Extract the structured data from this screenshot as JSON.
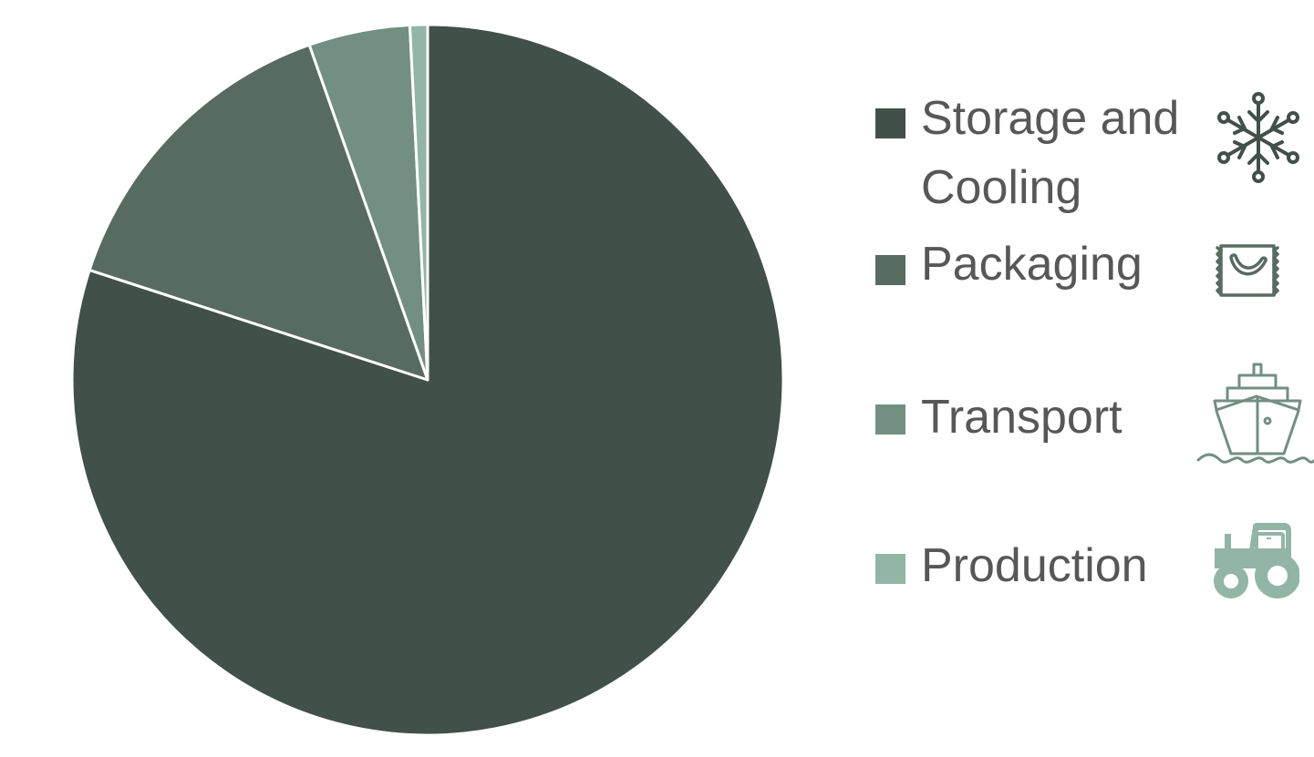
{
  "chart_data": {
    "type": "pie",
    "title": "",
    "series": [
      {
        "values": [
          80,
          14.6,
          4.6,
          0.8
        ]
      }
    ],
    "categories": [
      "Storage and Cooling",
      "Packaging",
      "Transport",
      "Production"
    ],
    "colors": [
      "#415048",
      "#576b61",
      "#728f82",
      "#93b5a6"
    ],
    "start": "12 o'clock",
    "direction": "clockwise",
    "legend_position": "right",
    "data_labels": false
  },
  "legend": {
    "items": [
      {
        "label": "Storage and Cooling",
        "color": "#415048",
        "icon": "snowflake-icon"
      },
      {
        "label": "Packaging",
        "color": "#576b61",
        "icon": "banana-package-icon"
      },
      {
        "label": "Transport",
        "color": "#728f82",
        "icon": "ship-icon"
      },
      {
        "label": "Production",
        "color": "#93b5a6",
        "icon": "tractor-icon"
      }
    ]
  }
}
